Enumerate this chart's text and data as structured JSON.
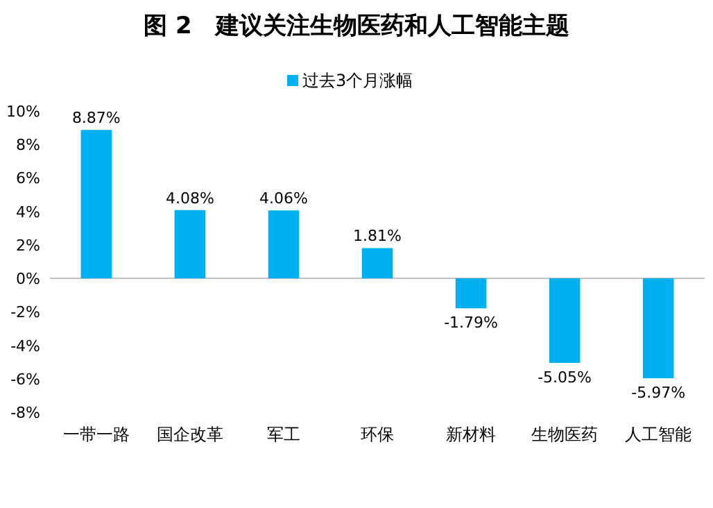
{
  "chart_data": {
    "type": "bar",
    "title": "图 2　建议关注生物医药和人工智能主题",
    "categories": [
      "一带一路",
      "国企改革",
      "军工",
      "环保",
      "新材料",
      "生物医药",
      "人工智能"
    ],
    "series": [
      {
        "name": "过去3个月涨幅",
        "color": "#00b0f0",
        "values": [
          8.87,
          4.08,
          4.06,
          1.81,
          -1.79,
          -5.05,
          -5.97
        ],
        "value_labels": [
          "8.87%",
          "4.08%",
          "4.06%",
          "1.81%",
          "-1.79%",
          "-5.05%",
          "-5.97%"
        ]
      }
    ],
    "ylim": [
      -8,
      10
    ],
    "yticks": [
      {
        "value": -8,
        "label": "-8%"
      },
      {
        "value": -6,
        "label": "-6%"
      },
      {
        "value": -4,
        "label": "-4%"
      },
      {
        "value": -2,
        "label": "-2%"
      },
      {
        "value": 0,
        "label": "0%"
      },
      {
        "value": 2,
        "label": "2%"
      },
      {
        "value": 4,
        "label": "4%"
      },
      {
        "value": 6,
        "label": "6%"
      },
      {
        "value": 8,
        "label": "8%"
      },
      {
        "value": 10,
        "label": "10%"
      }
    ],
    "legend": "top"
  }
}
